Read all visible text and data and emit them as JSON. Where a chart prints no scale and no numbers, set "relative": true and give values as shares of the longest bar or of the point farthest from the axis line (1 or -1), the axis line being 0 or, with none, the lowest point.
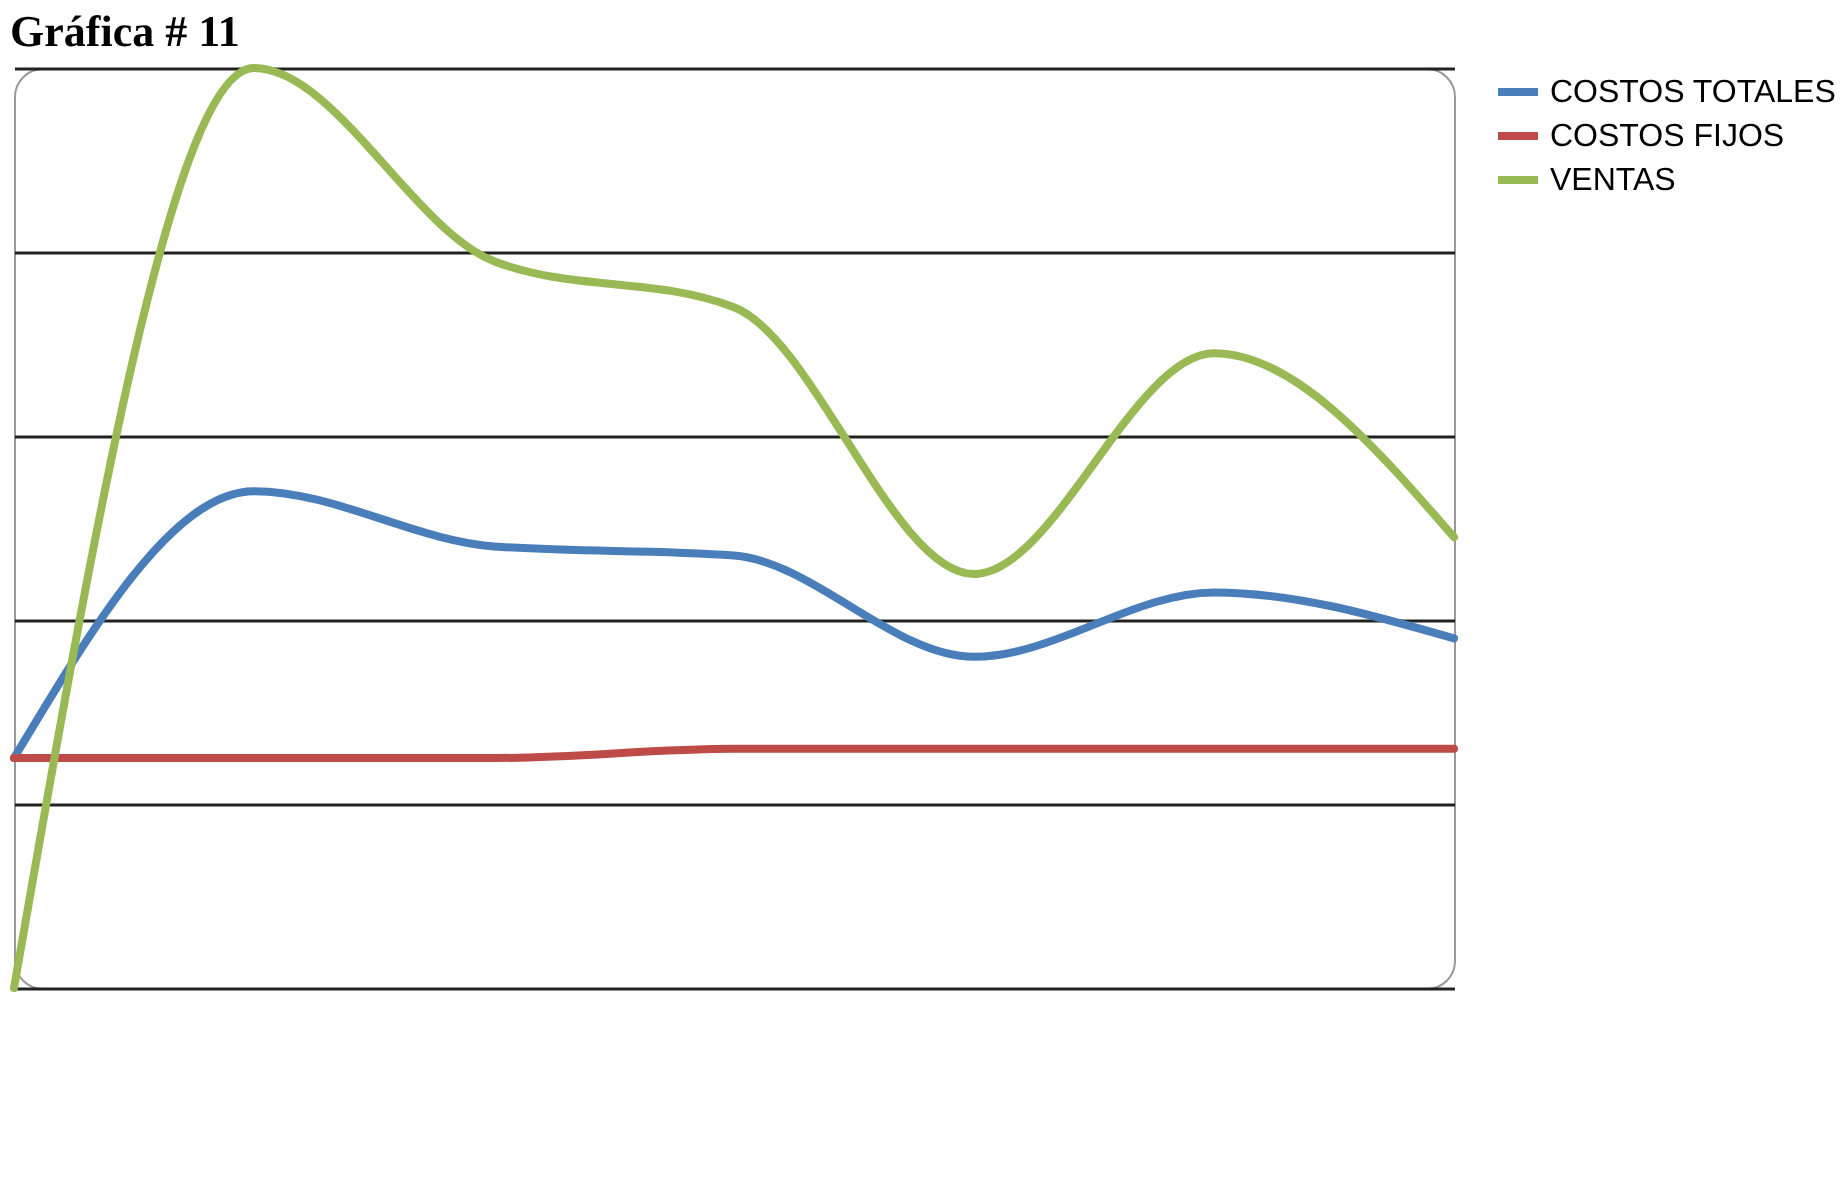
{
  "chart_data": {
    "type": "line",
    "title": "Gráfica # 11",
    "relative": true,
    "categories": [
      null,
      null,
      null,
      null,
      null,
      null,
      null
    ],
    "series": [
      {
        "name": "COSTOS TOTALES",
        "color": "#4a7ebb",
        "values": [
          0.25,
          0.54,
          0.48,
          0.47,
          0.36,
          0.43,
          0.38
        ]
      },
      {
        "name": "COSTOS FIJOS",
        "color": "#be4b48",
        "values": [
          0.25,
          0.25,
          0.25,
          0.26,
          0.26,
          0.26,
          0.26
        ]
      },
      {
        "name": "VENTAS",
        "color": "#98b954",
        "values": [
          0,
          1,
          0.79,
          0.74,
          0.45,
          0.69,
          0.49
        ]
      }
    ],
    "grid": "y",
    "legend": "right",
    "marker": "none",
    "line_style": "solid"
  }
}
